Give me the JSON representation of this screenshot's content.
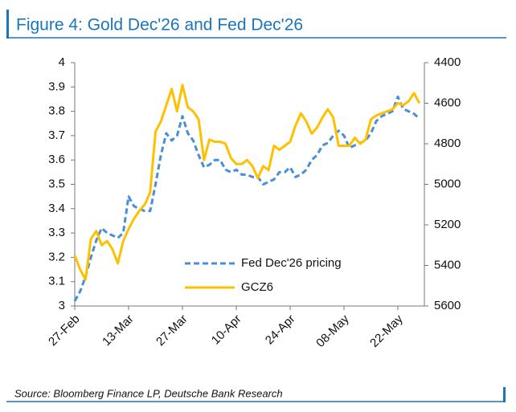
{
  "chart_data": {
    "type": "line",
    "title": "Figure 4: Gold Dec'26 and Fed Dec'26",
    "source": "Source: Bloomberg Finance LP, Deutsche Bank Research",
    "categories": [
      "27-Feb",
      null,
      null,
      null,
      null,
      null,
      null,
      null,
      null,
      null,
      "13-Mar",
      null,
      null,
      null,
      null,
      null,
      null,
      null,
      null,
      null,
      "27-Mar",
      null,
      null,
      null,
      null,
      null,
      null,
      null,
      null,
      null,
      "10-Apr",
      null,
      null,
      null,
      null,
      null,
      null,
      null,
      null,
      null,
      "24-Apr",
      null,
      null,
      null,
      null,
      null,
      null,
      null,
      null,
      null,
      "08-May",
      null,
      null,
      null,
      null,
      null,
      null,
      null,
      null,
      null,
      "22-May",
      null,
      null,
      null,
      null
    ],
    "series": [
      {
        "name": "Fed Dec'26 pricing",
        "color": "#4a8fd6",
        "dashed": true,
        "axis": "y",
        "values": [
          3.02,
          3.06,
          3.12,
          3.2,
          3.27,
          3.32,
          3.3,
          3.29,
          3.28,
          3.3,
          3.45,
          3.41,
          3.4,
          3.39,
          3.39,
          3.5,
          3.62,
          3.71,
          3.68,
          3.7,
          3.78,
          3.71,
          3.68,
          3.62,
          3.57,
          3.58,
          3.6,
          3.6,
          3.56,
          3.55,
          3.56,
          3.54,
          3.54,
          3.53,
          3.53,
          3.5,
          3.51,
          3.52,
          3.55,
          3.55,
          3.57,
          3.53,
          3.54,
          3.56,
          3.6,
          3.62,
          3.66,
          3.67,
          3.7,
          3.72,
          3.7,
          3.65,
          3.66,
          3.67,
          3.68,
          3.71,
          3.76,
          3.78,
          3.79,
          3.8,
          3.86,
          3.81,
          3.8,
          3.79,
          3.77
        ]
      },
      {
        "name": "GCZ6",
        "color": "#ffc000",
        "dashed": false,
        "axis": "y2",
        "values": [
          5350,
          5420,
          5470,
          5270,
          5230,
          5300,
          5280,
          5320,
          5390,
          5280,
          5220,
          5170,
          5130,
          5100,
          5040,
          4740,
          4690,
          4610,
          4530,
          4640,
          4510,
          4620,
          4640,
          4680,
          4880,
          4780,
          4790,
          4790,
          4800,
          4870,
          4900,
          4900,
          4880,
          4910,
          4970,
          4910,
          4930,
          4810,
          4830,
          4810,
          4790,
          4710,
          4650,
          4690,
          4750,
          4720,
          4670,
          4630,
          4670,
          4810,
          4810,
          4810,
          4770,
          4800,
          4780,
          4680,
          4660,
          4650,
          4640,
          4630,
          4600,
          4610,
          4590,
          4550,
          4600
        ]
      }
    ],
    "ylim": [
      3,
      4
    ],
    "yticks": [
      3,
      3.1,
      3.2,
      3.3,
      3.4,
      3.5,
      3.6,
      3.7,
      3.8,
      3.9,
      4
    ],
    "y2lim": [
      5600,
      4400
    ],
    "y2ticks": [
      5600,
      5400,
      5200,
      5000,
      4800,
      4600,
      4400
    ],
    "grid": false,
    "legend": "lower-right"
  }
}
